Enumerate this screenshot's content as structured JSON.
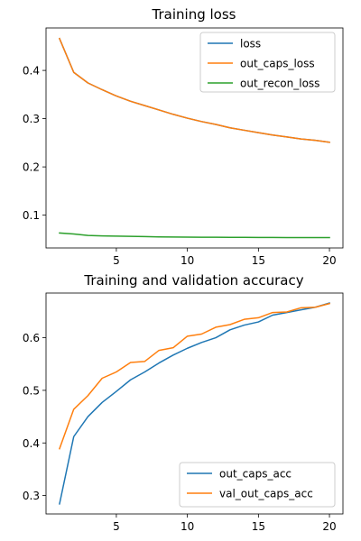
{
  "chart_data": [
    {
      "type": "line",
      "title": "Training loss",
      "xlabel": "",
      "ylabel": "",
      "xlim": [
        0.05,
        20.95
      ],
      "ylim": [
        0.032,
        0.488
      ],
      "xticks": [
        5,
        10,
        15,
        20
      ],
      "yticks": [
        0.1,
        0.2,
        0.3,
        0.4
      ],
      "grid": false,
      "legend_position": "top-right",
      "x": [
        1,
        2,
        3,
        4,
        5,
        6,
        7,
        8,
        9,
        10,
        11,
        12,
        13,
        14,
        15,
        16,
        17,
        18,
        19,
        20
      ],
      "series": [
        {
          "name": "loss",
          "color": "#1f77b4",
          "values": [
            0.466,
            0.396,
            0.374,
            0.36,
            0.347,
            0.336,
            0.327,
            0.318,
            0.309,
            0.301,
            0.294,
            0.288,
            0.281,
            0.276,
            0.271,
            0.266,
            0.262,
            0.258,
            0.255,
            0.251
          ]
        },
        {
          "name": "out_caps_loss",
          "color": "#ff7f0e",
          "values": [
            0.466,
            0.396,
            0.374,
            0.36,
            0.347,
            0.336,
            0.327,
            0.318,
            0.309,
            0.301,
            0.294,
            0.288,
            0.281,
            0.276,
            0.271,
            0.266,
            0.262,
            0.258,
            0.255,
            0.251
          ]
        },
        {
          "name": "out_recon_loss",
          "color": "#2ca02c",
          "values": [
            0.063,
            0.061,
            0.058,
            0.057,
            0.0565,
            0.056,
            0.0555,
            0.055,
            0.0547,
            0.0545,
            0.0543,
            0.0541,
            0.054,
            0.0539,
            0.0538,
            0.0537,
            0.0536,
            0.0535,
            0.0535,
            0.0534
          ]
        }
      ]
    },
    {
      "type": "line",
      "title": "Training and validation accuracy",
      "xlabel": "",
      "ylabel": "",
      "xlim": [
        0.05,
        20.95
      ],
      "ylim": [
        0.265,
        0.685
      ],
      "xticks": [
        5,
        10,
        15,
        20
      ],
      "yticks": [
        0.3,
        0.4,
        0.5,
        0.6
      ],
      "grid": false,
      "legend_position": "bottom-right",
      "x": [
        1,
        2,
        3,
        4,
        5,
        6,
        7,
        8,
        9,
        10,
        11,
        12,
        13,
        14,
        15,
        16,
        17,
        18,
        19,
        20
      ],
      "series": [
        {
          "name": "out_caps_acc",
          "color": "#1f77b4",
          "values": [
            0.284,
            0.412,
            0.45,
            0.477,
            0.498,
            0.52,
            0.535,
            0.552,
            0.567,
            0.58,
            0.591,
            0.6,
            0.615,
            0.624,
            0.63,
            0.643,
            0.648,
            0.653,
            0.658,
            0.666
          ]
        },
        {
          "name": "val_out_caps_acc",
          "color": "#ff7f0e",
          "values": [
            0.389,
            0.464,
            0.49,
            0.523,
            0.535,
            0.553,
            0.555,
            0.576,
            0.581,
            0.603,
            0.607,
            0.62,
            0.625,
            0.635,
            0.638,
            0.648,
            0.649,
            0.657,
            0.658,
            0.665
          ]
        }
      ]
    }
  ]
}
